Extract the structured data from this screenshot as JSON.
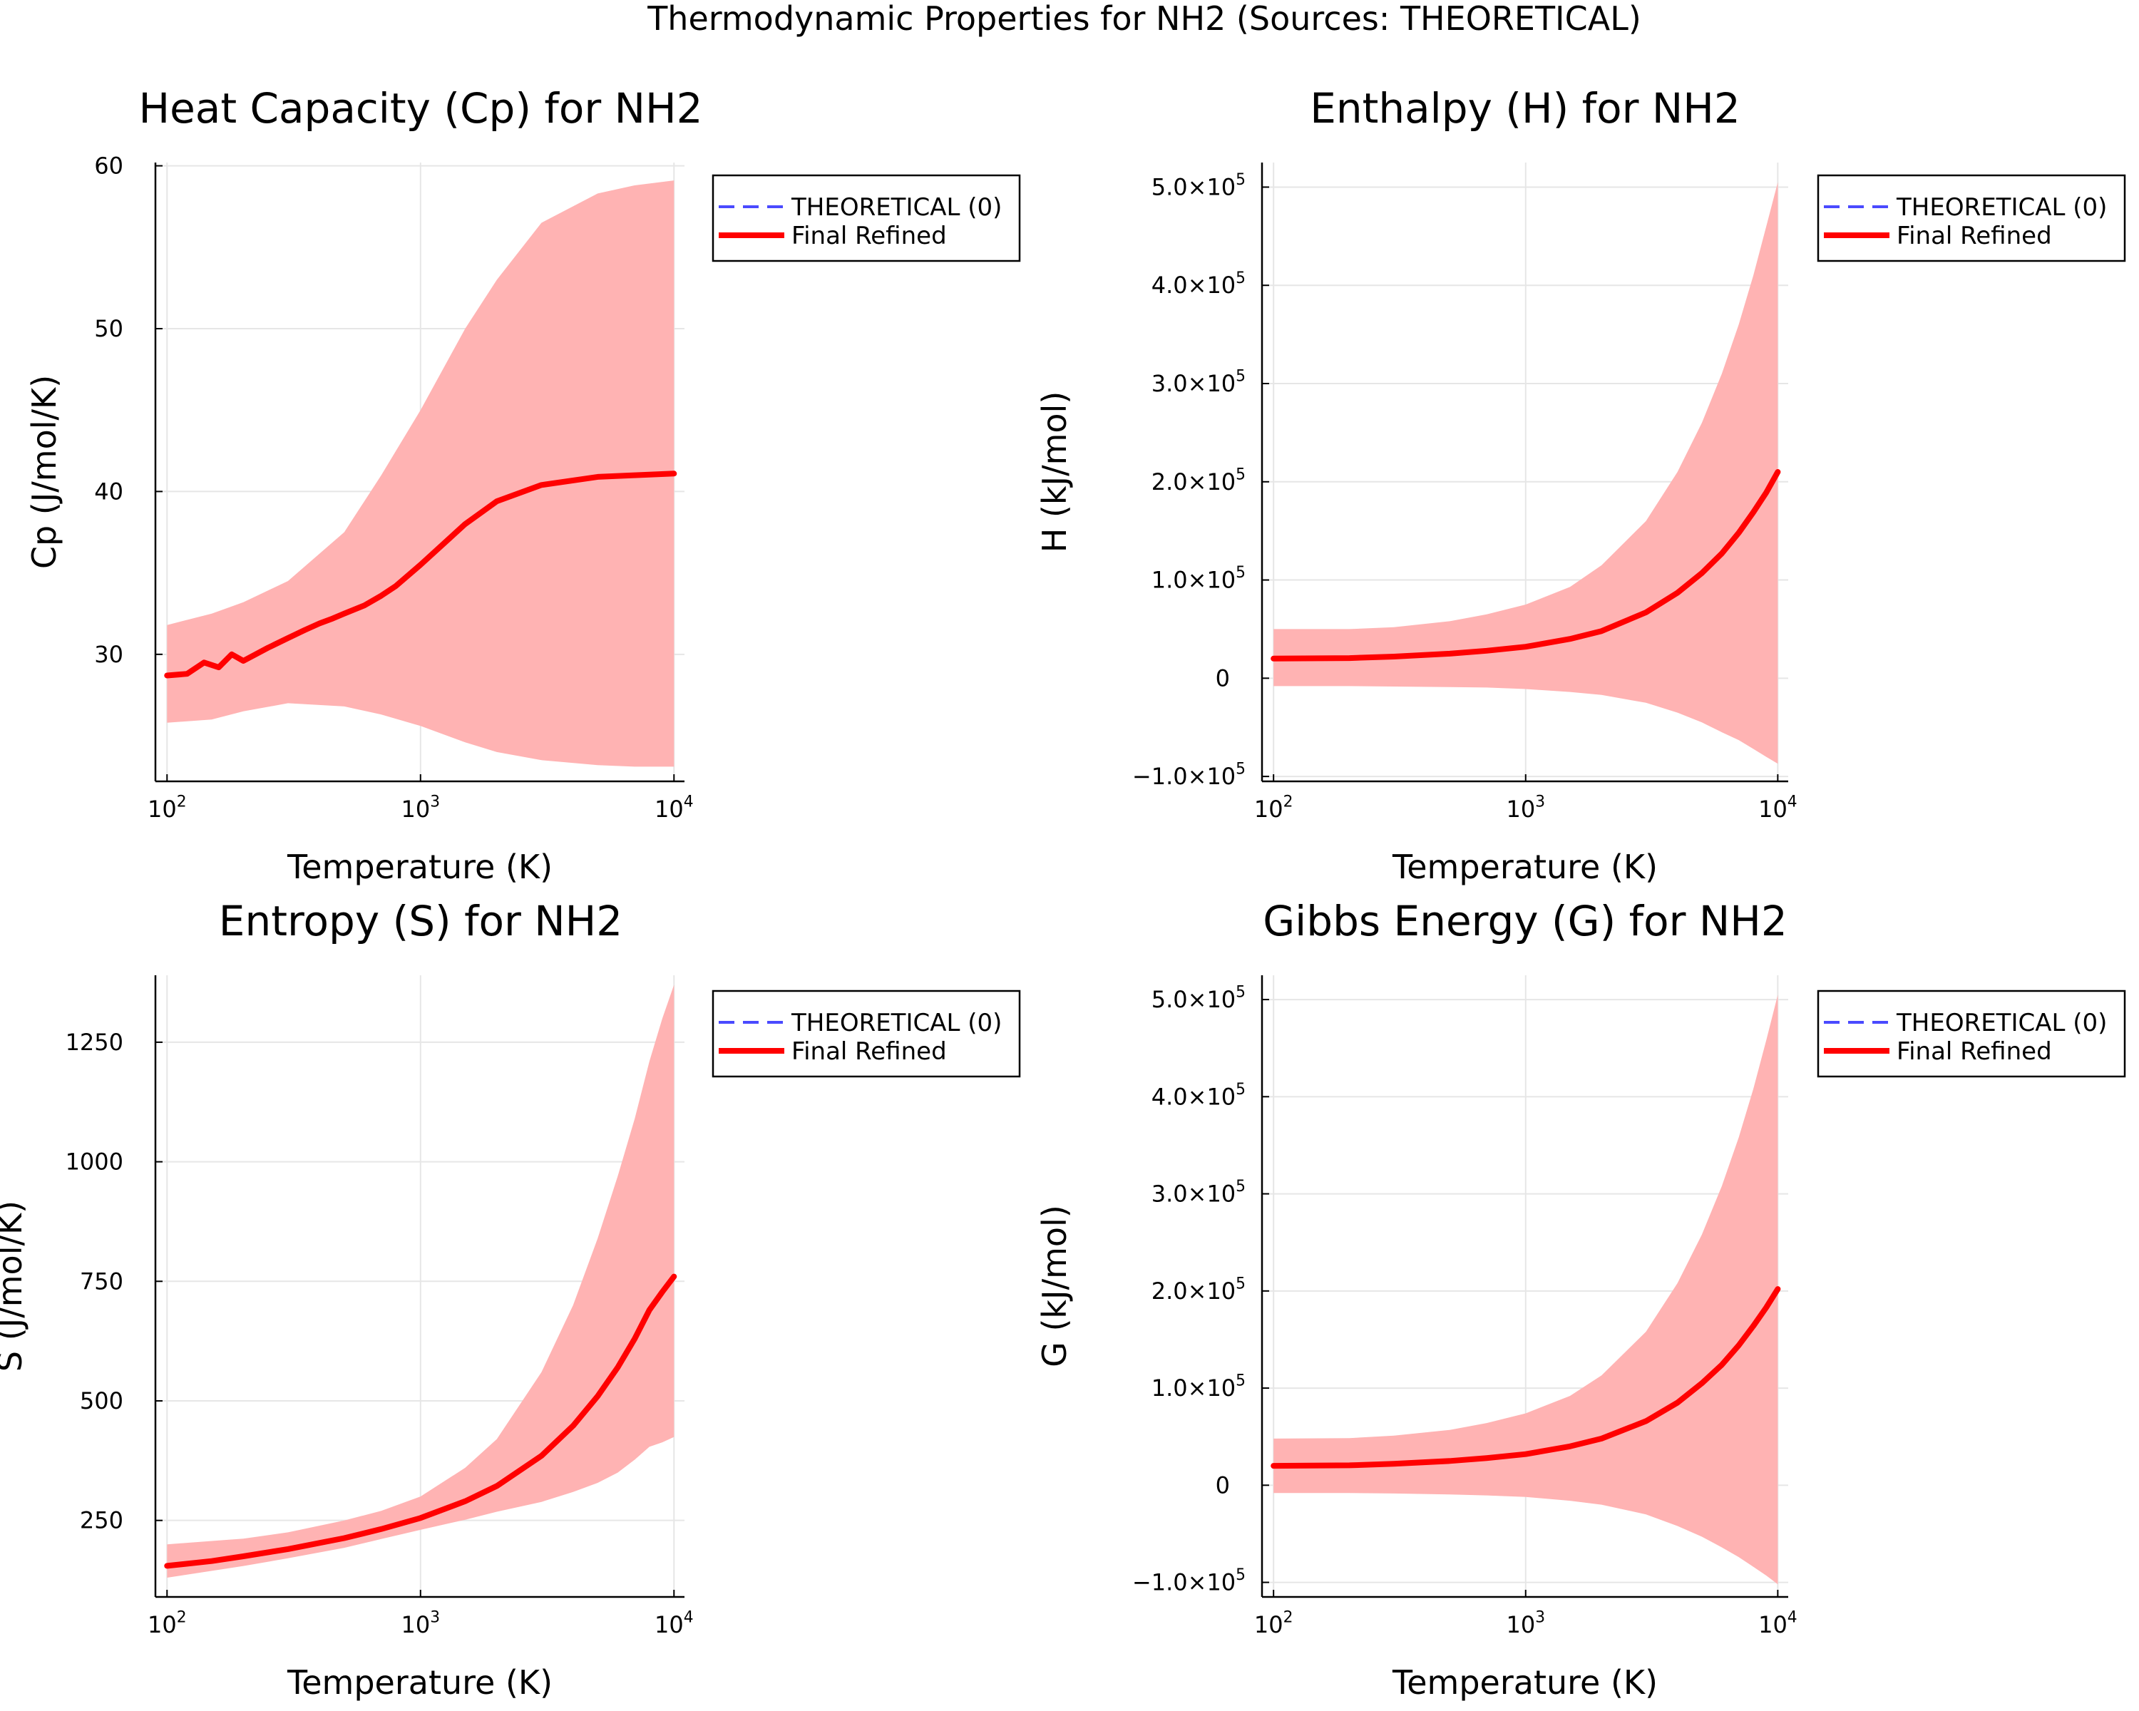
{
  "suptitle": "Thermodynamic Properties for NH2 (Sources: THEORETICAL)",
  "colors": {
    "refined": "#ff0000",
    "band": "#ffb3b3",
    "theoretical": "#4a4aff",
    "grid": "#e6e6e6",
    "axis": "#000000"
  },
  "chart_data": [
    {
      "type": "line",
      "title": "Heat Capacity (Cp) for NH2",
      "xlabel": "Temperature (K)",
      "ylabel": "Cp (J/mol/K)",
      "xscale": "log",
      "xlim": [
        90,
        11000
      ],
      "ylim": [
        22.2,
        60.2
      ],
      "xticks": [
        {
          "v": 100,
          "base": "10",
          "exp": "2"
        },
        {
          "v": 1000,
          "base": "10",
          "exp": "3"
        },
        {
          "v": 10000,
          "base": "10",
          "exp": "4"
        }
      ],
      "yticks": [
        {
          "v": 30,
          "label": "30"
        },
        {
          "v": 40,
          "label": "40"
        },
        {
          "v": 50,
          "label": "50"
        },
        {
          "v": 60,
          "label": "60"
        }
      ],
      "grid": true,
      "legend_position": "top-right (outside)",
      "legend": [
        "THEORETICAL (0)",
        "Final Refined"
      ],
      "series": [
        {
          "name": "Final Refined",
          "style": "solid-red-thick",
          "x": [
            100,
            120,
            140,
            160,
            180,
            200,
            250,
            300,
            350,
            400,
            450,
            500,
            600,
            700,
            800,
            1000,
            1500,
            2000,
            3000,
            5000,
            7000,
            10000
          ],
          "y": [
            28.7,
            28.8,
            29.5,
            29.2,
            30.0,
            29.6,
            30.4,
            31.0,
            31.5,
            31.9,
            32.2,
            32.5,
            33.0,
            33.6,
            34.2,
            35.5,
            38.0,
            39.4,
            40.4,
            40.9,
            41.0,
            41.1
          ]
        },
        {
          "name": "band",
          "style": "band",
          "x": [
            100,
            150,
            200,
            300,
            500,
            700,
            1000,
            1500,
            2000,
            3000,
            5000,
            7000,
            10000
          ],
          "y_upper": [
            31.8,
            32.5,
            33.2,
            34.5,
            37.5,
            41.0,
            45.0,
            50.0,
            53.0,
            56.5,
            58.3,
            58.8,
            59.1
          ],
          "y_lower": [
            25.8,
            26.0,
            26.5,
            27.0,
            26.8,
            26.3,
            25.6,
            24.6,
            24.0,
            23.5,
            23.2,
            23.1,
            23.1
          ]
        }
      ]
    },
    {
      "type": "line",
      "title": "Enthalpy (H) for NH2",
      "xlabel": "Temperature (K)",
      "ylabel": "H (kJ/mol)",
      "xscale": "log",
      "xlim": [
        90,
        11000
      ],
      "ylim": [
        -105000,
        525000
      ],
      "xticks": [
        {
          "v": 100,
          "base": "10",
          "exp": "2"
        },
        {
          "v": 1000,
          "base": "10",
          "exp": "3"
        },
        {
          "v": 10000,
          "base": "10",
          "exp": "4"
        }
      ],
      "yticks": [
        {
          "v": -100000,
          "base": "−1.0×10",
          "exp": "5"
        },
        {
          "v": 0,
          "base": "0",
          "exp": ""
        },
        {
          "v": 100000,
          "base": "1.0×10",
          "exp": "5"
        },
        {
          "v": 200000,
          "base": "2.0×10",
          "exp": "5"
        },
        {
          "v": 300000,
          "base": "3.0×10",
          "exp": "5"
        },
        {
          "v": 400000,
          "base": "4.0×10",
          "exp": "5"
        },
        {
          "v": 500000,
          "base": "5.0×10",
          "exp": "5"
        }
      ],
      "grid": true,
      "legend_position": "top-right (outside)",
      "legend": [
        "THEORETICAL (0)",
        "Final Refined"
      ],
      "series": [
        {
          "name": "Final Refined",
          "style": "solid-red-thick",
          "x": [
            100,
            200,
            300,
            500,
            700,
            1000,
            1500,
            2000,
            3000,
            4000,
            5000,
            6000,
            7000,
            8000,
            9000,
            10000
          ],
          "y": [
            20000,
            20500,
            22000,
            25000,
            28000,
            32000,
            40000,
            48000,
            67000,
            87000,
            107000,
            127000,
            148000,
            169000,
            189000,
            210000
          ]
        },
        {
          "name": "band",
          "style": "band",
          "x": [
            100,
            200,
            300,
            500,
            700,
            1000,
            1500,
            2000,
            3000,
            4000,
            5000,
            6000,
            7000,
            8000,
            9000,
            10000
          ],
          "y_upper": [
            50000,
            50000,
            52000,
            58000,
            65000,
            75000,
            93000,
            115000,
            160000,
            210000,
            260000,
            310000,
            360000,
            410000,
            460000,
            505000
          ],
          "y_lower": [
            -8000,
            -8000,
            -8500,
            -9000,
            -9500,
            -11000,
            -14000,
            -17000,
            -25000,
            -35000,
            -45000,
            -55000,
            -63000,
            -72000,
            -80000,
            -87000
          ]
        }
      ]
    },
    {
      "type": "line",
      "title": "Entropy (S) for NH2",
      "xlabel": "Temperature (K)",
      "ylabel": "S (J/mol/K)",
      "xscale": "log",
      "xlim": [
        90,
        11000
      ],
      "ylim": [
        90,
        1390
      ],
      "xticks": [
        {
          "v": 100,
          "base": "10",
          "exp": "2"
        },
        {
          "v": 1000,
          "base": "10",
          "exp": "3"
        },
        {
          "v": 10000,
          "base": "10",
          "exp": "4"
        }
      ],
      "yticks": [
        {
          "v": 250,
          "label": "250"
        },
        {
          "v": 500,
          "label": "500"
        },
        {
          "v": 750,
          "label": "750"
        },
        {
          "v": 1000,
          "label": "1000"
        },
        {
          "v": 1250,
          "label": "1250"
        }
      ],
      "grid": true,
      "legend_position": "top-right (outside)",
      "legend": [
        "THEORETICAL (0)",
        "Final Refined"
      ],
      "series": [
        {
          "name": "Final Refined",
          "style": "solid-red-thick",
          "x": [
            100,
            150,
            200,
            300,
            500,
            700,
            1000,
            1500,
            2000,
            3000,
            4000,
            5000,
            6000,
            7000,
            8000,
            9000,
            10000
          ],
          "y": [
            155,
            165,
            175,
            190,
            213,
            232,
            255,
            290,
            322,
            385,
            448,
            510,
            570,
            630,
            690,
            728,
            760
          ]
        },
        {
          "name": "band",
          "style": "band",
          "x": [
            100,
            200,
            300,
            500,
            700,
            1000,
            1500,
            2000,
            3000,
            4000,
            5000,
            6000,
            7000,
            8000,
            9000,
            10000
          ],
          "y_upper": [
            200,
            212,
            225,
            250,
            270,
            300,
            360,
            420,
            560,
            700,
            840,
            970,
            1090,
            1210,
            1300,
            1370
          ]
        }
      ]
    },
    {
      "type": "line",
      "title": "Gibbs Energy (G) for NH2",
      "xlabel": "Temperature (K)",
      "ylabel": "G (kJ/mol)",
      "xscale": "log",
      "xlim": [
        90,
        11000
      ],
      "ylim": [
        -115000,
        525000
      ],
      "xticks": [
        {
          "v": 100,
          "base": "10",
          "exp": "2"
        },
        {
          "v": 1000,
          "base": "10",
          "exp": "3"
        },
        {
          "v": 10000,
          "base": "10",
          "exp": "4"
        }
      ],
      "yticks": [
        {
          "v": -100000,
          "base": "−1.0×10",
          "exp": "5"
        },
        {
          "v": 0,
          "base": "0",
          "exp": ""
        },
        {
          "v": 100000,
          "base": "1.0×10",
          "exp": "5"
        },
        {
          "v": 200000,
          "base": "2.0×10",
          "exp": "5"
        },
        {
          "v": 300000,
          "base": "3.0×10",
          "exp": "5"
        },
        {
          "v": 400000,
          "base": "4.0×10",
          "exp": "5"
        },
        {
          "v": 500000,
          "base": "5.0×10",
          "exp": "5"
        }
      ],
      "grid": true,
      "legend_position": "top-right (outside)",
      "legend": [
        "THEORETICAL (0)",
        "Final Refined"
      ],
      "series": [
        {
          "name": "Final Refined",
          "style": "solid-red-thick",
          "x": [
            100,
            200,
            300,
            500,
            700,
            1000,
            1500,
            2000,
            3000,
            4000,
            5000,
            6000,
            7000,
            8000,
            9000,
            10000
          ],
          "y": [
            20000,
            20500,
            22000,
            25000,
            28000,
            32000,
            40000,
            48000,
            66000,
            85000,
            105000,
            124000,
            144000,
            164000,
            183000,
            202000
          ]
        },
        {
          "name": "band",
          "style": "band",
          "x": [
            100,
            200,
            300,
            500,
            700,
            1000,
            1500,
            2000,
            3000,
            4000,
            5000,
            6000,
            7000,
            8000,
            9000,
            10000
          ],
          "y_upper": [
            48000,
            48500,
            51000,
            57000,
            64000,
            74000,
            92000,
            113000,
            158000,
            208000,
            258000,
            308000,
            358000,
            408000,
            458000,
            505000
          ],
          "y_lower": [
            -8000,
            -8000,
            -8500,
            -9500,
            -10500,
            -12000,
            -16000,
            -20000,
            -30000,
            -42000,
            -53000,
            -64000,
            -74000,
            -84000,
            -93000,
            -102000
          ]
        }
      ]
    }
  ]
}
